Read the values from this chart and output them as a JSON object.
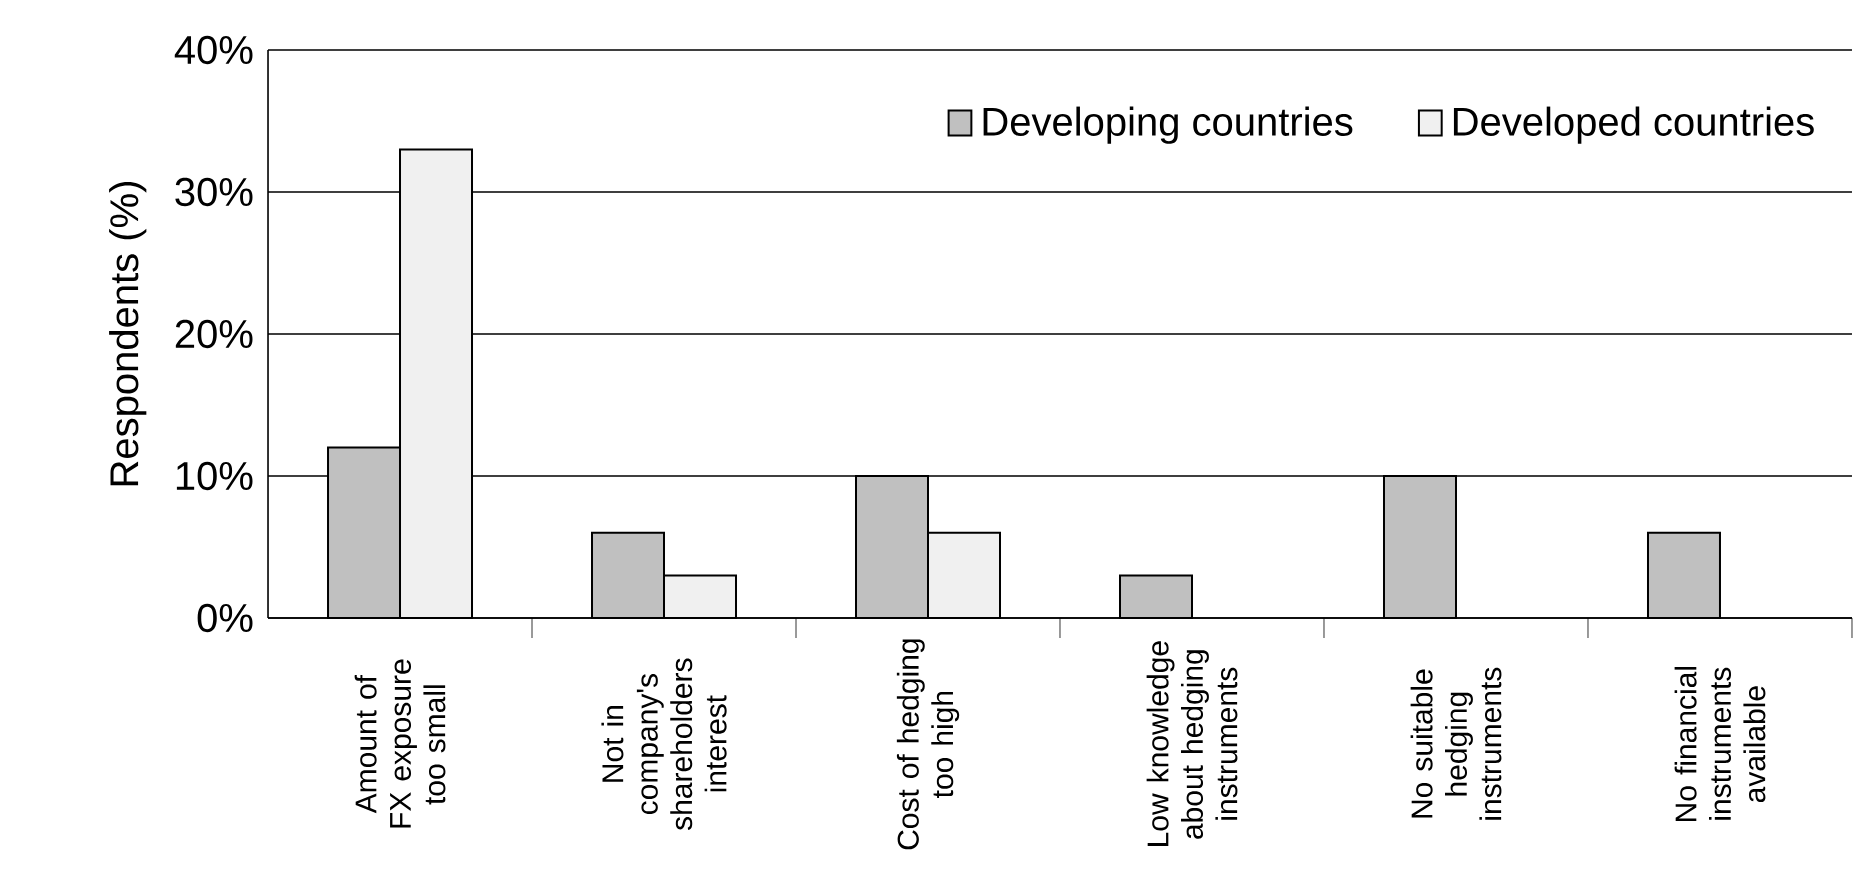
{
  "chart_data": {
    "type": "bar",
    "ylabel": "Respondents (%)",
    "categories": [
      "Amount of FX exposure too small",
      "Not in company's shareholders interest",
      "Cost of hedging too high",
      "Low knowledge about hedging instruments",
      "No suitable hedging instruments",
      "No financial instruments available"
    ],
    "series": [
      {
        "name": "Developing countries",
        "color": "#c0c0c0",
        "values": [
          12,
          6,
          10,
          3,
          10,
          6
        ]
      },
      {
        "name": "Developed countries",
        "color": "#f0f0f0",
        "values": [
          33,
          3,
          6,
          null,
          null,
          null
        ]
      }
    ],
    "ylim": [
      0,
      40
    ],
    "yticks": [
      {
        "value": 0,
        "label": "0%"
      },
      {
        "value": 10,
        "label": "10%"
      },
      {
        "value": 20,
        "label": "20%"
      },
      {
        "value": 30,
        "label": "30%"
      },
      {
        "value": 40,
        "label": "40%"
      }
    ],
    "grid": "y",
    "legend": "top right"
  }
}
